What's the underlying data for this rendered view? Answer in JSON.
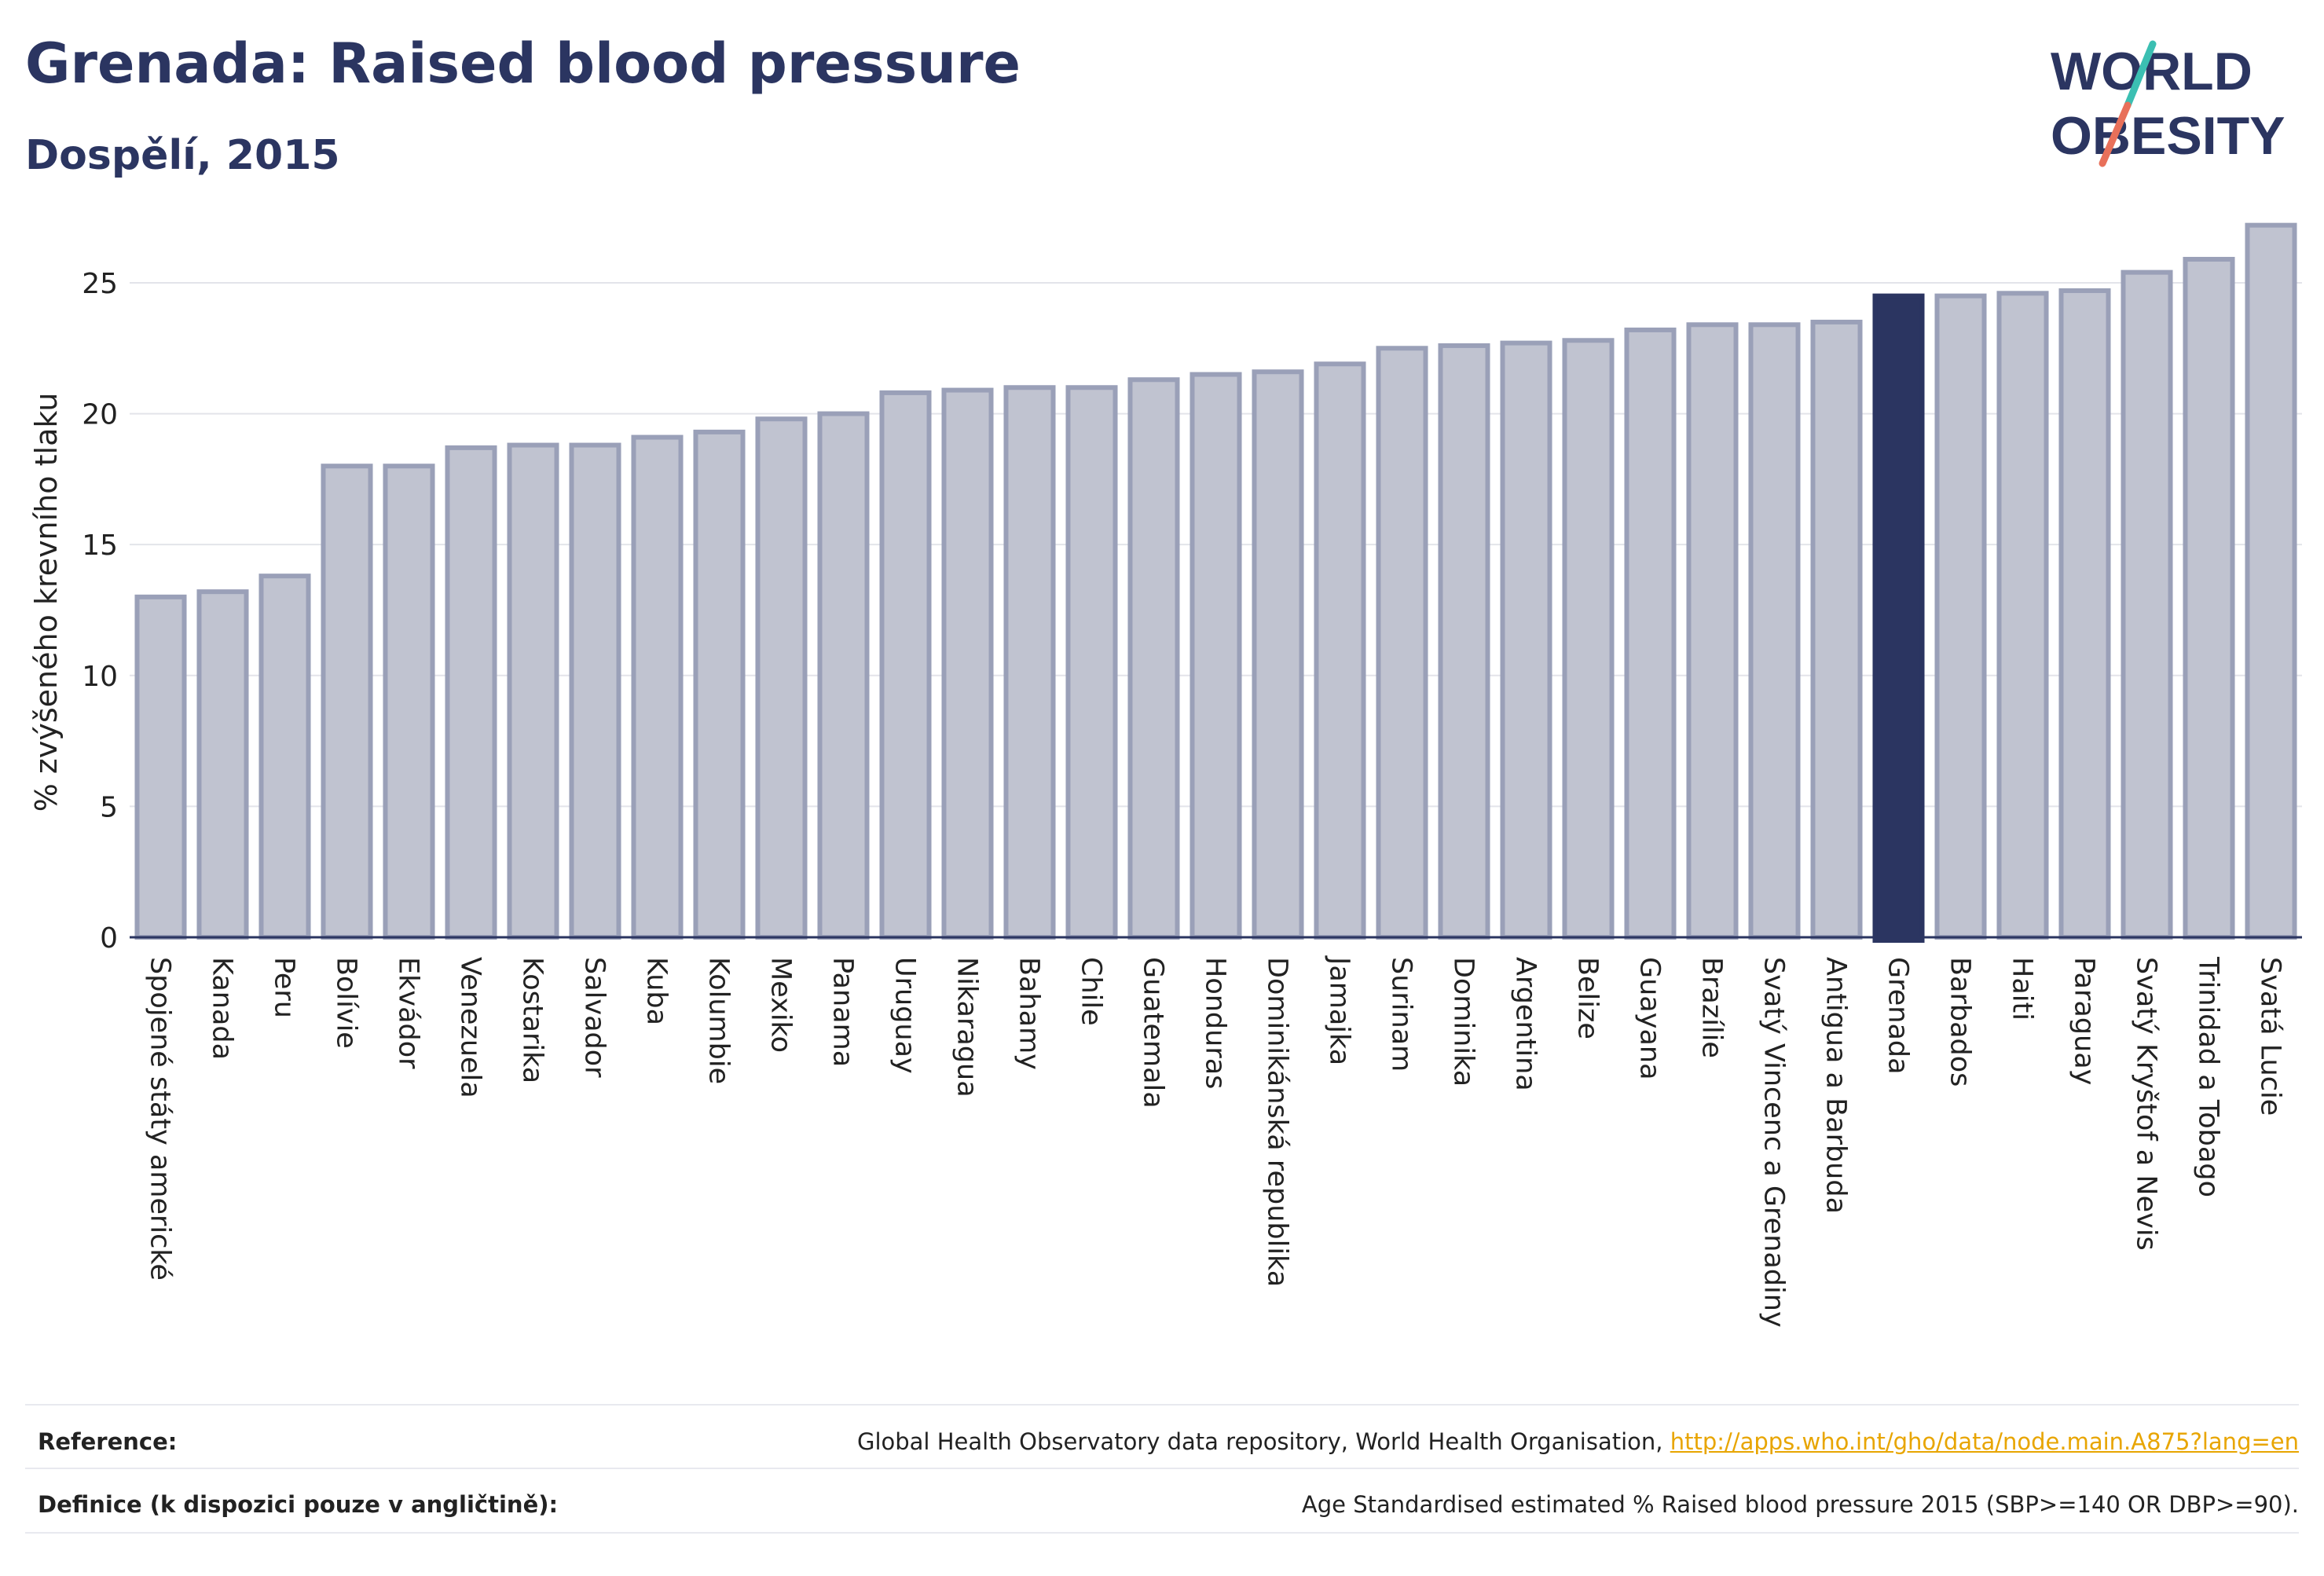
{
  "header": {
    "title": "Grenada: Raised blood pressure",
    "subtitle": "Dospělí, 2015"
  },
  "logo": {
    "line1": "WORLD",
    "line2": "OBESITY"
  },
  "colors": {
    "bar_fill": "#c0c3d0",
    "bar_stroke": "#9aa0b8",
    "highlight": "#2b3561",
    "grid": "#e3e4ea",
    "logo_text": "#2b3561",
    "logo_teal": "#3bbfb2",
    "logo_red": "#e8705a"
  },
  "chart_data": {
    "type": "bar",
    "ylabel": "% zvýšeného krevního tlaku",
    "ylim": [
      0,
      28
    ],
    "yticks": [
      0,
      5,
      10,
      15,
      20,
      25
    ],
    "grid": true,
    "highlight": "Grenada",
    "categories": [
      "Spojené státy americké",
      "Kanada",
      "Peru",
      "Bolívie",
      "Ekvádor",
      "Venezuela",
      "Kostarika",
      "Salvador",
      "Kuba",
      "Kolumbie",
      "Mexiko",
      "Panama",
      "Uruguay",
      "Nikaragua",
      "Bahamy",
      "Chile",
      "Guatemala",
      "Honduras",
      "Dominikánská republika",
      "Jamajka",
      "Surinam",
      "Dominika",
      "Argentina",
      "Belize",
      "Guayana",
      "Brazílie",
      "Svatý Vincenc a Grenadiny",
      "Antigua a Barbuda",
      "Grenada",
      "Barbados",
      "Haiti",
      "Paraguay",
      "Svatý Kryštof a Nevis",
      "Trinidad a Tobago",
      "Svatá Lucie"
    ],
    "values": [
      13.0,
      13.2,
      13.8,
      18.0,
      18.0,
      18.7,
      18.8,
      18.8,
      19.1,
      19.3,
      19.8,
      20.0,
      20.8,
      20.9,
      21.0,
      21.0,
      21.3,
      21.5,
      21.6,
      21.9,
      22.5,
      22.6,
      22.7,
      22.8,
      23.2,
      23.4,
      23.4,
      23.5,
      24.5,
      24.5,
      24.6,
      24.7,
      25.4,
      25.9,
      27.2
    ]
  },
  "footer": {
    "reference_label": "Reference:",
    "reference_text": "Global Health Observatory data repository, World Health Organisation, ",
    "reference_link": "http://apps.who.int/gho/data/node.main.A875?lang=en",
    "definition_label": "Definice (k dispozici pouze v angličtině):",
    "definition_text": "Age Standardised estimated % Raised blood pressure 2015 (SBP>=140 OR DBP>=90)."
  }
}
